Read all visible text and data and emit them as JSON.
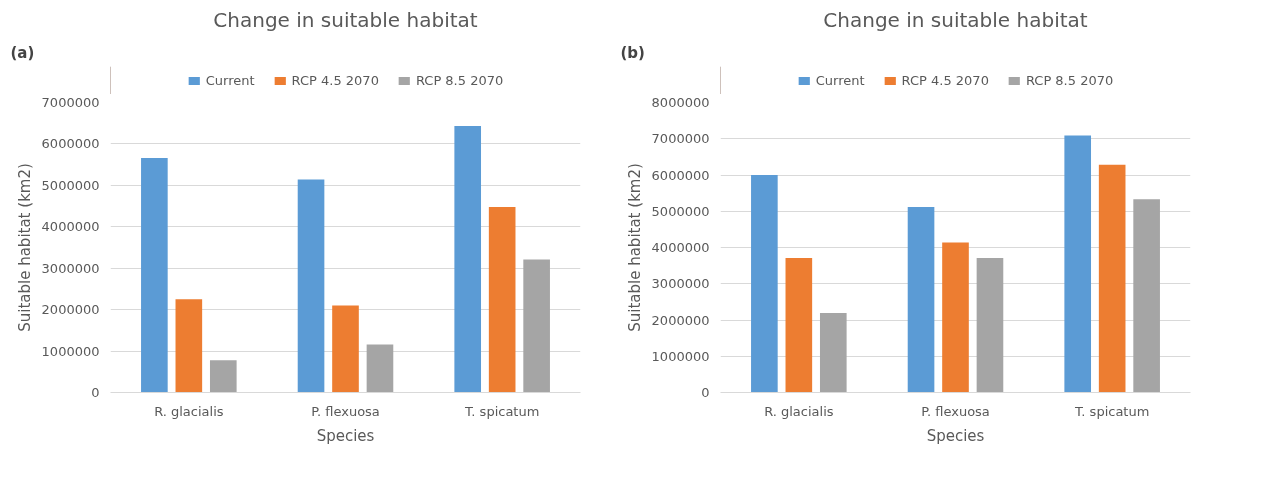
{
  "chart_data": [
    {
      "type": "bar",
      "title": "Change in suitable habitat",
      "xlabel": "Species",
      "ylabel": "Suitable habitat (km2)",
      "annotations": [
        "(a)"
      ],
      "categories": [
        "R. glacialis",
        "P. flexuosa",
        "T. spicatum"
      ],
      "series": [
        {
          "name": "Current",
          "color": "#5b9bd5",
          "values": [
            5660000,
            5140000,
            6430000
          ]
        },
        {
          "name": "RCP 4.5 2070",
          "color": "#ed7d31",
          "values": [
            2250000,
            2100000,
            4480000
          ]
        },
        {
          "name": "RCP 8.5 2070",
          "color": "#a5a5a5",
          "values": [
            780000,
            1160000,
            3210000
          ]
        }
      ],
      "ylim": [
        0,
        7000000
      ],
      "yticks": [
        0,
        1000000,
        2000000,
        3000000,
        4000000,
        5000000,
        6000000,
        7000000
      ],
      "grid": "y",
      "legend": "top"
    },
    {
      "type": "bar",
      "title": "Change in suitable habitat",
      "xlabel": "Species",
      "ylabel": "Suitable habitat (km2)",
      "annotations": [
        "(b)"
      ],
      "categories": [
        "R. glacialis",
        "P. flexuosa",
        "T. spicatum"
      ],
      "series": [
        {
          "name": "Current",
          "color": "#5b9bd5",
          "values": [
            6000000,
            5120000,
            7090000
          ]
        },
        {
          "name": "RCP 4.5 2070",
          "color": "#ed7d31",
          "values": [
            3710000,
            4140000,
            6280000
          ]
        },
        {
          "name": "RCP 8.5 2070",
          "color": "#a5a5a5",
          "values": [
            2190000,
            3710000,
            5330000
          ]
        }
      ],
      "ylim": [
        0,
        8000000
      ],
      "yticks": [
        0,
        1000000,
        2000000,
        3000000,
        4000000,
        5000000,
        6000000,
        7000000,
        8000000
      ],
      "grid": "y",
      "legend": "top"
    }
  ]
}
